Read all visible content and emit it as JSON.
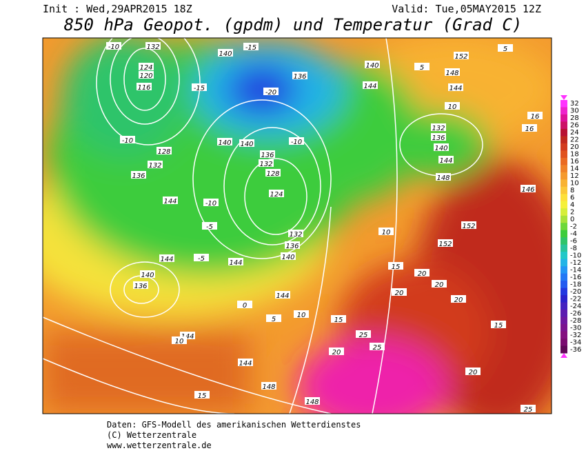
{
  "header": {
    "init": "Init : Wed,29APR2015 18Z",
    "valid": "Valid: Tue,05MAY2015 12Z",
    "title": "850 hPa Geopot. (gpdm) und Temperatur (Grad C)"
  },
  "colorbar": {
    "ticks": [
      32,
      30,
      28,
      26,
      24,
      22,
      20,
      18,
      16,
      14,
      12,
      10,
      8,
      6,
      4,
      2,
      0,
      -2,
      -4,
      -6,
      -8,
      -10,
      -12,
      -14,
      -16,
      -18,
      -20,
      -22,
      -24,
      -26,
      -28,
      -30,
      -32,
      -34,
      -36
    ],
    "colors": [
      "#ff33ff",
      "#ee22cc",
      "#dd1199",
      "#cc1166",
      "#b81133",
      "#c0281e",
      "#d23a1e",
      "#e0521e",
      "#ea6a22",
      "#f08228",
      "#f59a2e",
      "#f8b232",
      "#fbc838",
      "#fde03a",
      "#f5f03a",
      "#d6ee3a",
      "#a8e23a",
      "#6ed83a",
      "#3ccc3c",
      "#2ec46a",
      "#28c49c",
      "#22c8c8",
      "#22b4e6",
      "#2296f5",
      "#2278f5",
      "#225af0",
      "#2238e0",
      "#2a22cc",
      "#4422c0",
      "#5c1cb0",
      "#6e18a0",
      "#7a1490",
      "#841080",
      "#7a0c70",
      "#600858"
    ]
  },
  "map": {
    "labels": [
      "-10",
      "132",
      "124",
      "120",
      "116",
      "140",
      "-15",
      "-15",
      "136",
      "-20",
      "140",
      "144",
      "152",
      "148",
      "144",
      "10",
      "132",
      "136",
      "140",
      "144",
      "148",
      "-10",
      "128",
      "132",
      "136",
      "140",
      "140",
      "-10",
      "136",
      "132",
      "128",
      "124",
      "144",
      "-10",
      "-5",
      "132",
      "136",
      "140",
      "144",
      "-5",
      "144",
      "140",
      "136",
      "144",
      "0",
      "5",
      "10",
      "15",
      "25",
      "25",
      "20",
      "144",
      "10",
      "144",
      "148",
      "148",
      "15",
      "20",
      "20",
      "15",
      "25",
      "152",
      "152",
      "146",
      "20",
      "20",
      "20",
      "15",
      "10",
      "16",
      "16",
      "5",
      "5"
    ]
  },
  "footer": {
    "lines": [
      "Daten: GFS-Modell des amerikanischen Wetterdienstes",
      "(C) Wetterzentrale",
      "www.wetterzentrale.de"
    ]
  }
}
